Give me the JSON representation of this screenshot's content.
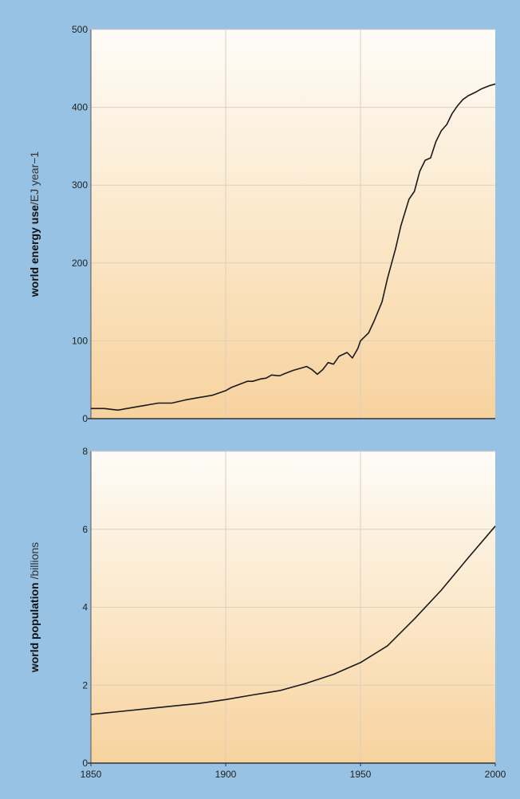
{
  "chart_data": [
    {
      "type": "line",
      "title": "",
      "ylabel_bold": "world energy use",
      "ylabel_rest": "/EJ year−1",
      "xlim": [
        1850,
        2000
      ],
      "ylim": [
        0,
        500
      ],
      "xticks": [
        1850,
        1900,
        1950,
        2000
      ],
      "yticks": [
        0,
        100,
        200,
        300,
        400,
        500
      ],
      "grid": true,
      "series": [
        {
          "x": [
            1850,
            1855,
            1860,
            1865,
            1870,
            1875,
            1880,
            1885,
            1890,
            1895,
            1900,
            1902,
            1905,
            1908,
            1910,
            1913,
            1915,
            1917,
            1920,
            1922,
            1925,
            1928,
            1930,
            1932,
            1934,
            1936,
            1938,
            1940,
            1942,
            1945,
            1947,
            1949,
            1950,
            1953,
            1955,
            1958,
            1960,
            1963,
            1965,
            1968,
            1970,
            1972,
            1974,
            1976,
            1978,
            1980,
            1982,
            1984,
            1986,
            1988,
            1990,
            1993,
            1995,
            1998,
            2000
          ],
          "y": [
            13,
            13,
            11,
            14,
            17,
            20,
            20,
            24,
            27,
            30,
            36,
            40,
            44,
            48,
            48,
            51,
            52,
            56,
            55,
            58,
            62,
            65,
            67,
            63,
            57,
            63,
            72,
            70,
            80,
            85,
            78,
            90,
            100,
            110,
            125,
            150,
            180,
            218,
            248,
            282,
            292,
            318,
            332,
            335,
            356,
            370,
            378,
            392,
            402,
            410,
            415,
            420,
            424,
            428,
            430
          ]
        }
      ]
    },
    {
      "type": "line",
      "title": "",
      "ylabel_bold": "world population",
      "ylabel_rest": " /billions",
      "xlim": [
        1850,
        2000
      ],
      "ylim": [
        0,
        8
      ],
      "xticks": [
        1850,
        1900,
        1950,
        2000
      ],
      "xtick_labels": [
        "1850",
        "1900",
        "1950",
        "2000"
      ],
      "yticks": [
        0,
        2,
        4,
        6,
        8
      ],
      "grid": true,
      "series": [
        {
          "x": [
            1850,
            1860,
            1870,
            1880,
            1890,
            1900,
            1910,
            1920,
            1930,
            1940,
            1950,
            1960,
            1970,
            1980,
            1990,
            2000
          ],
          "y": [
            1.25,
            1.32,
            1.39,
            1.46,
            1.53,
            1.63,
            1.75,
            1.86,
            2.05,
            2.28,
            2.58,
            3.01,
            3.7,
            4.44,
            5.27,
            6.08
          ]
        }
      ]
    }
  ]
}
